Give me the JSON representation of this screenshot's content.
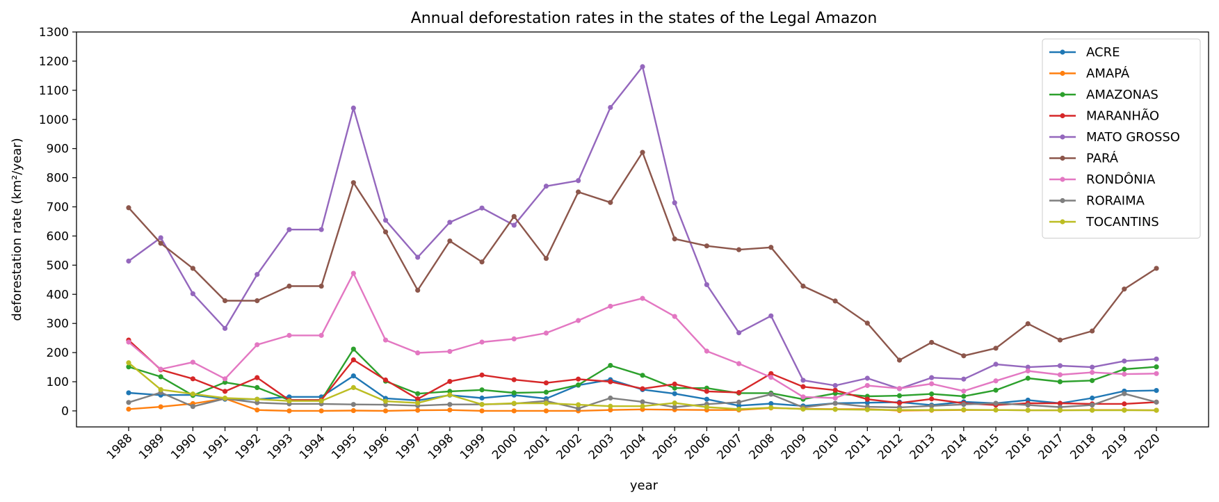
{
  "chart_data": {
    "type": "line",
    "title": "Annual deforestation rates in the states of the Legal Amazon",
    "xlabel": "year",
    "ylabel": "deforestation rate (km²/year)",
    "ylim": [
      -55,
      1300
    ],
    "yticks": [
      0,
      100,
      200,
      300,
      400,
      500,
      600,
      700,
      800,
      900,
      1000,
      1100,
      1200,
      1300
    ],
    "legend_position": "top-right",
    "grid": false,
    "x": [
      "1988",
      "1989",
      "1990",
      "1991",
      "1992",
      "1993",
      "1994",
      "1995",
      "1996",
      "1997",
      "1998",
      "1999",
      "2000",
      "2001",
      "2002",
      "2003",
      "2004",
      "2005",
      "2006",
      "2007",
      "2008",
      "2009",
      "2010",
      "2011",
      "2012",
      "2013",
      "2014",
      "2015",
      "2016",
      "2017",
      "2018",
      "2019",
      "2020"
    ],
    "series": [
      {
        "name": "ACRE",
        "color": "#1f77b4",
        "values": [
          62,
          54,
          55,
          40,
          40,
          48,
          48,
          120,
          43,
          36,
          54,
          44,
          54,
          42,
          88,
          107,
          73,
          59,
          40,
          18,
          25,
          17,
          26,
          28,
          30,
          20,
          31,
          26,
          37,
          26,
          44,
          68,
          70
        ]
      },
      {
        "name": "AMAPÁ",
        "color": "#ff7f0e",
        "values": [
          6,
          14,
          25,
          42,
          3,
          0,
          0,
          1,
          0,
          2,
          3,
          0,
          0,
          0,
          0,
          3,
          5,
          4,
          3,
          3,
          10,
          7,
          6,
          6,
          1,
          2,
          3,
          3,
          2,
          2,
          3,
          3,
          2
        ]
      },
      {
        "name": "AMAZONAS",
        "color": "#2ca02c",
        "values": [
          151,
          117,
          53,
          98,
          80,
          37,
          37,
          212,
          102,
          59,
          67,
          72,
          62,
          64,
          89,
          156,
          122,
          78,
          78,
          61,
          61,
          40,
          60,
          50,
          52,
          58,
          50,
          71,
          112,
          100,
          104,
          143,
          151
        ]
      },
      {
        "name": "MARANHÃO",
        "color": "#d62728",
        "values": [
          243,
          141,
          110,
          67,
          114,
          37,
          37,
          175,
          106,
          41,
          101,
          123,
          107,
          96,
          109,
          100,
          76,
          92,
          67,
          63,
          128,
          83,
          71,
          40,
          27,
          41,
          26,
          20,
          26,
          26,
          24,
          24,
          30
        ]
      },
      {
        "name": "MATO GROSSO",
        "color": "#9467bd",
        "values": [
          514,
          594,
          402,
          283,
          468,
          622,
          622,
          1039,
          654,
          527,
          647,
          696,
          637,
          771,
          790,
          1041,
          1181,
          714,
          433,
          268,
          326,
          105,
          87,
          112,
          76,
          114,
          109,
          160,
          150,
          155,
          150,
          171,
          178
        ]
      },
      {
        "name": "PARÁ",
        "color": "#8c564b",
        "values": [
          697,
          575,
          489,
          378,
          378,
          428,
          428,
          783,
          614,
          414,
          583,
          511,
          667,
          523,
          751,
          715,
          887,
          590,
          566,
          553,
          561,
          428,
          377,
          301,
          174,
          235,
          189,
          215,
          299,
          243,
          274,
          418,
          489
        ]
      },
      {
        "name": "RONDÔNIA",
        "color": "#e377c2",
        "values": [
          236,
          143,
          167,
          110,
          227,
          259,
          259,
          472,
          243,
          199,
          204,
          236,
          247,
          267,
          310,
          359,
          386,
          324,
          205,
          162,
          115,
          48,
          44,
          87,
          77,
          93,
          68,
          103,
          137,
          124,
          132,
          126,
          128
        ]
      },
      {
        "name": "RORAIMA",
        "color": "#7f7f7f",
        "values": [
          29,
          63,
          15,
          42,
          28,
          24,
          24,
          22,
          21,
          18,
          22,
          22,
          25,
          34,
          8,
          44,
          31,
          13,
          23,
          30,
          57,
          12,
          26,
          14,
          12,
          17,
          22,
          26,
          20,
          13,
          20,
          59,
          30
        ]
      },
      {
        "name": "TOCANTINS",
        "color": "#bcbd22",
        "values": [
          165,
          73,
          58,
          44,
          40,
          34,
          34,
          80,
          33,
          27,
          55,
          22,
          26,
          26,
          21,
          16,
          16,
          27,
          13,
          6,
          11,
          6,
          5,
          4,
          3,
          3,
          4,
          3,
          2,
          2,
          2,
          2,
          2
        ]
      }
    ]
  }
}
